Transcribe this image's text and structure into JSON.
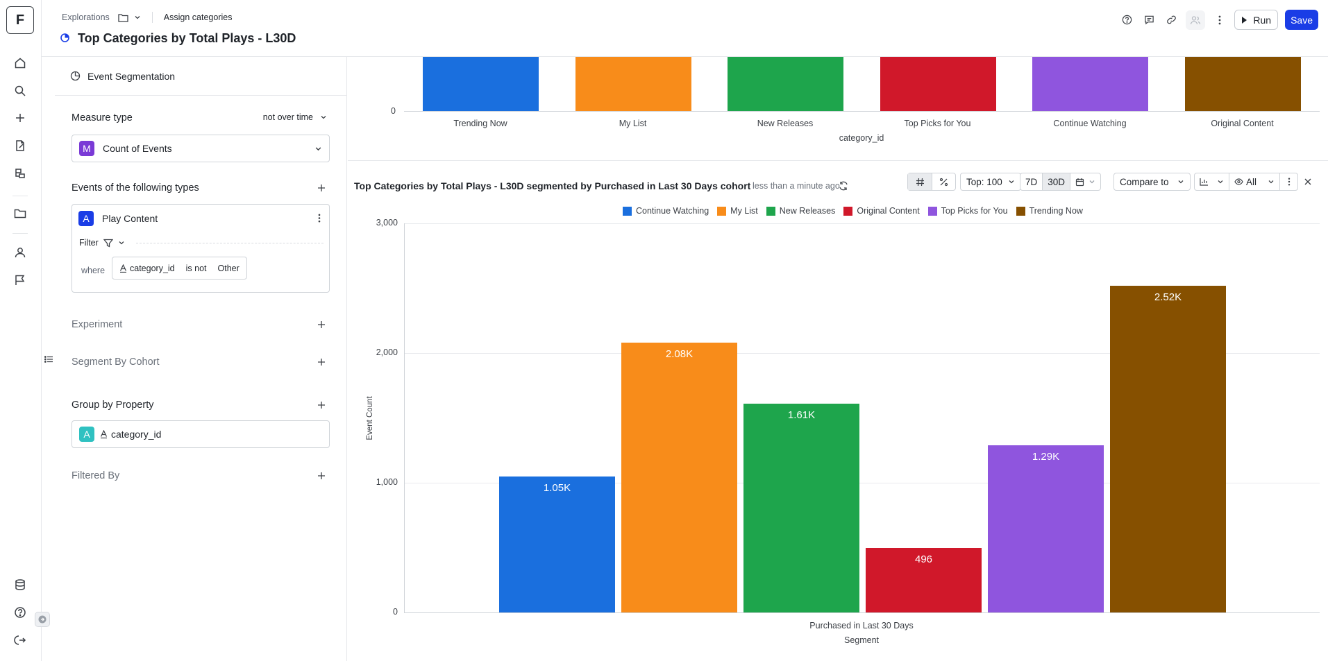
{
  "app": {
    "logo_letter": "F",
    "breadcrumbs": [
      "Explorations"
    ],
    "assign_label": "Assign categories",
    "title": "Top Categories by Total Plays - L30D",
    "run_label": "Run",
    "save_label": "Save"
  },
  "panel": {
    "header": "Event Segmentation",
    "measure_type_label": "Measure type",
    "measure_mode": "not over time",
    "measure_badge": "M",
    "measure_value": "Count of Events",
    "events_label": "Events of the following types",
    "event_badge": "A",
    "event_name": "Play Content",
    "filter_label": "Filter",
    "where_label": "where",
    "condition": {
      "property": "category_id",
      "operator": "is not",
      "value": "Other"
    },
    "experiment_label": "Experiment",
    "segment_label": "Segment By Cohort",
    "group_label": "Group by Property",
    "group_badge": "A",
    "group_value": "category_id",
    "filtered_label": "Filtered By"
  },
  "top_chart": {
    "y_zero": "0",
    "x_title": "category_id",
    "categories": [
      "Trending Now",
      "My List",
      "New Releases",
      "Top Picks for You",
      "Continue Watching",
      "Original Content"
    ],
    "colors": [
      "#1a6fde",
      "#f88c1a",
      "#1ea54c",
      "#d0182a",
      "#8f55de",
      "#865000"
    ]
  },
  "card": {
    "title": "Top Categories by Total Plays - L30D segmented by Purchased in Last 30 Days cohort",
    "time": "less than a minute ago",
    "top_label": "Top: 100",
    "range_7d": "7D",
    "range_30d": "30D",
    "compare_label": "Compare to",
    "all_label": "All"
  },
  "chart_data": {
    "type": "bar",
    "categories": [
      "Purchased in Last 30 Days"
    ],
    "xlabel": "Segment",
    "ylabel": "Event Count",
    "ylim": [
      0,
      3000
    ],
    "yticks": [
      "0",
      "1,000",
      "2,000",
      "3,000"
    ],
    "grid": true,
    "legend_position": "top",
    "series": [
      {
        "name": "Continue Watching",
        "values": [
          1050
        ],
        "label": "1.05K",
        "color": "#1a6fde"
      },
      {
        "name": "My List",
        "values": [
          2080
        ],
        "label": "2.08K",
        "color": "#f88c1a"
      },
      {
        "name": "New Releases",
        "values": [
          1610
        ],
        "label": "1.61K",
        "color": "#1ea54c"
      },
      {
        "name": "Original Content",
        "values": [
          496
        ],
        "label": "496",
        "color": "#d0182a"
      },
      {
        "name": "Top Picks for You",
        "values": [
          1290
        ],
        "label": "1.29K",
        "color": "#8f55de"
      },
      {
        "name": "Trending Now",
        "values": [
          2520
        ],
        "label": "2.52K",
        "color": "#865000"
      }
    ]
  }
}
